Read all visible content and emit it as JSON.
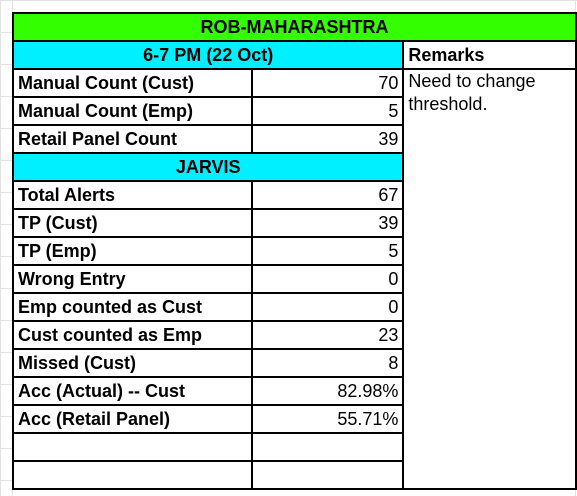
{
  "title": "ROB-MAHARASHTRA",
  "session_header": "6-7 PM (22 Oct)",
  "remarks_header": "Remarks",
  "remarks_text": "Need to change threshold.",
  "section_header": "JARVIS",
  "counts": [
    {
      "label": "Manual Count (Cust)",
      "value": "70"
    },
    {
      "label": "Manual Count (Emp)",
      "value": "5"
    },
    {
      "label": "Retail Panel Count",
      "value": "39"
    }
  ],
  "jarvis_rows": [
    {
      "label": "Total Alerts",
      "value": "67"
    },
    {
      "label": "TP (Cust)",
      "value": "39"
    },
    {
      "label": "TP (Emp)",
      "value": "5"
    },
    {
      "label": "Wrong Entry",
      "value": "0"
    },
    {
      "label": "Emp counted as Cust",
      "value": "0"
    },
    {
      "label": "Cust counted as Emp",
      "value": "23"
    },
    {
      "label": "Missed (Cust)",
      "value": "8"
    },
    {
      "label": "Acc (Actual) -- Cust",
      "value": "82.98%"
    },
    {
      "label": "Acc (Retail Panel)",
      "value": "55.71%"
    }
  ],
  "colors": {
    "title_bg": "#33ff00",
    "header_bg": "#00f0ff",
    "border": "#000000"
  }
}
